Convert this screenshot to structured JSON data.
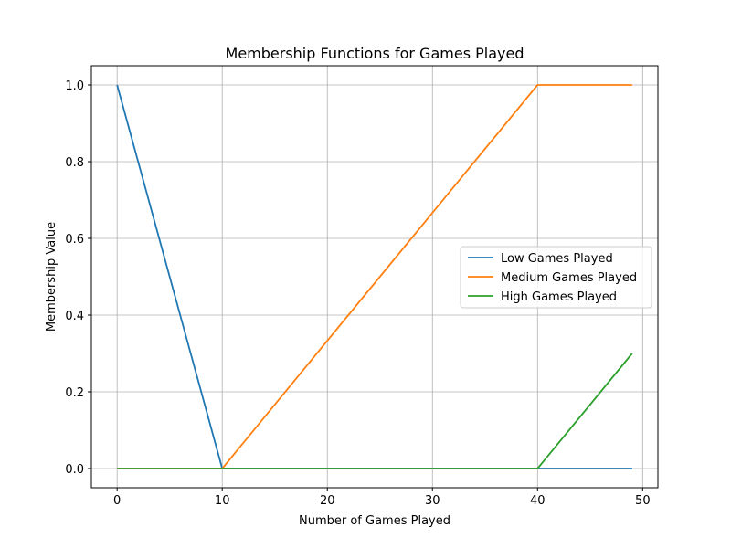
{
  "chart_data": {
    "type": "line",
    "title": "Membership Functions for Games Played",
    "xlabel": "Number of Games Played",
    "ylabel": "Membership Value",
    "xlim": [
      -2.45,
      51.45
    ],
    "ylim": [
      -0.05,
      1.05
    ],
    "xticks": [
      0,
      10,
      20,
      30,
      40,
      50
    ],
    "yticks": [
      0.0,
      0.2,
      0.4,
      0.6,
      0.8,
      1.0
    ],
    "xtick_labels": [
      "0",
      "10",
      "20",
      "30",
      "40",
      "50"
    ],
    "ytick_labels": [
      "0.0",
      "0.2",
      "0.4",
      "0.6",
      "0.8",
      "1.0"
    ],
    "grid": true,
    "legend_position": "center-right",
    "series": [
      {
        "name": "Low Games Played",
        "color": "#1f77b4",
        "x": [
          0,
          10,
          49
        ],
        "y": [
          1.0,
          0.0,
          0.0
        ]
      },
      {
        "name": "Medium Games Played",
        "color": "#ff7f0e",
        "x": [
          0,
          10,
          40,
          49
        ],
        "y": [
          0.0,
          0.0,
          1.0,
          1.0
        ]
      },
      {
        "name": "High Games Played",
        "color": "#2ca02c",
        "x": [
          0,
          40,
          49
        ],
        "y": [
          0.0,
          0.0,
          0.3
        ]
      }
    ]
  }
}
